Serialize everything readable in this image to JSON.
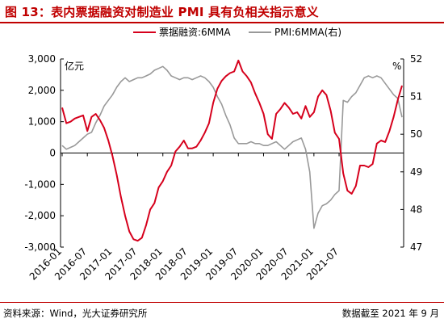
{
  "header": {
    "title": "图 13：表内票据融资对制造业 PMI 具有负相关指示意义"
  },
  "footer": {
    "source": "资料来源：Wind，光大证券研究所",
    "asof": "数据截至 2021 年 9 月"
  },
  "colors": {
    "title": "#c00000",
    "series_left": "#d6001c",
    "series_right": "#999999"
  },
  "chart_data": {
    "type": "line",
    "left_axis": {
      "unit": "亿元",
      "ylim": [
        -3000,
        3000
      ],
      "ticks": [
        "3,000",
        "2,000",
        "1,000",
        "0",
        "-1,000",
        "-2,000",
        "-3,000"
      ]
    },
    "right_axis": {
      "unit": "%",
      "ylim": [
        47,
        52
      ],
      "ticks": [
        "52",
        "51",
        "50",
        "49",
        "48",
        "47"
      ]
    },
    "x_ticks": [
      "2016-01",
      "2016-07",
      "2017-01",
      "2017-07",
      "2018-01",
      "2018-07",
      "2019-01",
      "2019-07",
      "2020-01",
      "2020-07",
      "2021-01",
      "2021-07"
    ],
    "legend": {
      "position": "top",
      "entries": [
        "票据融资:6MMA",
        "PMI:6MMA(右)"
      ]
    },
    "series": [
      {
        "name": "票据融资:6MMA",
        "axis": "left",
        "values": [
          1450,
          950,
          1000,
          1100,
          1150,
          1200,
          700,
          1150,
          1250,
          1050,
          800,
          400,
          -100,
          -700,
          -1400,
          -2000,
          -2500,
          -2750,
          -2800,
          -2700,
          -2300,
          -1800,
          -1600,
          -1100,
          -900,
          -600,
          -400,
          50,
          200,
          400,
          150,
          150,
          200,
          400,
          650,
          950,
          1600,
          2050,
          2300,
          2450,
          2550,
          2600,
          2950,
          2600,
          2450,
          2250,
          1900,
          1600,
          1250,
          600,
          450,
          1250,
          1400,
          1600,
          1450,
          1250,
          1300,
          1100,
          1500,
          1150,
          1300,
          1800,
          2000,
          1850,
          1350,
          650,
          450,
          -650,
          -1200,
          -1300,
          -1050,
          -400,
          -400,
          -450,
          -350,
          300,
          400,
          350,
          700,
          1150,
          1700,
          2150
        ]
      },
      {
        "name": "PMI:6MMA(右)",
        "axis": "right",
        "values": [
          49.7,
          49.6,
          49.65,
          49.7,
          49.8,
          49.9,
          50.0,
          50.05,
          50.3,
          50.5,
          50.75,
          50.9,
          51.05,
          51.25,
          51.4,
          51.5,
          51.4,
          51.45,
          51.5,
          51.5,
          51.55,
          51.6,
          51.7,
          51.75,
          51.8,
          51.7,
          51.55,
          51.5,
          51.45,
          51.5,
          51.5,
          51.45,
          51.5,
          51.55,
          51.5,
          51.4,
          51.25,
          51.0,
          50.8,
          50.5,
          50.25,
          49.9,
          49.75,
          49.75,
          49.75,
          49.8,
          49.75,
          49.75,
          49.7,
          49.7,
          49.75,
          49.8,
          49.7,
          49.6,
          49.7,
          49.8,
          49.85,
          49.9,
          49.6,
          49.0,
          47.5,
          47.9,
          48.1,
          48.15,
          48.25,
          48.4,
          48.5,
          50.9,
          50.85,
          51.0,
          51.1,
          51.3,
          51.5,
          51.55,
          51.5,
          51.55,
          51.5,
          51.35,
          51.2,
          51.05,
          50.95,
          50.45
        ]
      }
    ]
  }
}
